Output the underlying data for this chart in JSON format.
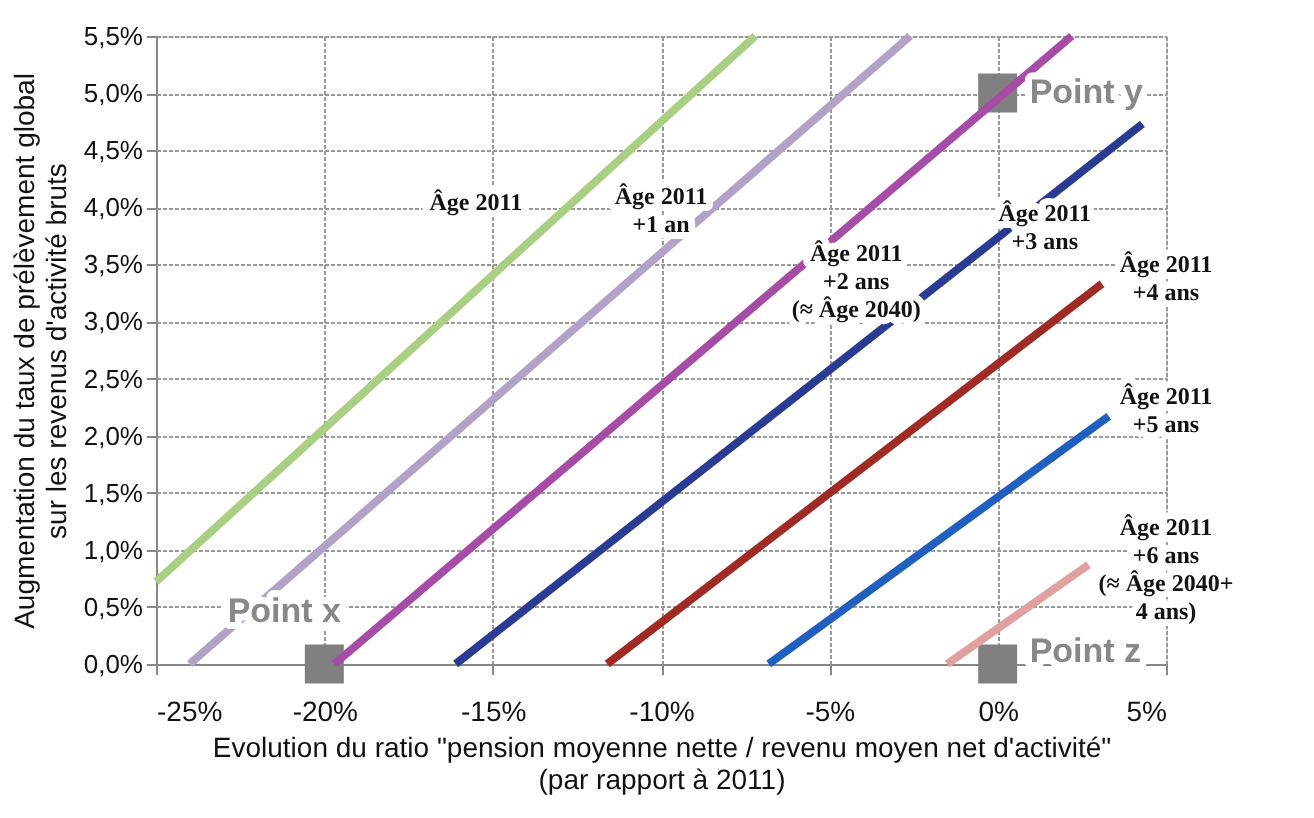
{
  "chart_data": {
    "type": "line",
    "xlabel": "Evolution du ratio \"pension moyenne nette / revenu moyen net d'activité\"\n(par rapport à 2011)",
    "ylabel": "Augmentation du taux de prélèvement global\nsur les revenus d'activité bruts",
    "xlim": [
      -25,
      5
    ],
    "ylim": [
      0,
      5.5
    ],
    "xticks": [
      {
        "value": -25,
        "label": "-25%"
      },
      {
        "value": -20,
        "label": "-20%"
      },
      {
        "value": -15,
        "label": "-15%"
      },
      {
        "value": -10,
        "label": "-10%"
      },
      {
        "value": -5,
        "label": "-5%"
      },
      {
        "value": 0,
        "label": "0%"
      },
      {
        "value": 5,
        "label": "5%"
      }
    ],
    "yticks": [
      {
        "value": 0,
        "label": "0,0%"
      },
      {
        "value": 0.5,
        "label": "0,5%"
      },
      {
        "value": 1,
        "label": "1,0%"
      },
      {
        "value": 1.5,
        "label": "1,5%"
      },
      {
        "value": 2,
        "label": "2,0%"
      },
      {
        "value": 2.5,
        "label": "2,5%"
      },
      {
        "value": 3,
        "label": "3,0%"
      },
      {
        "value": 3.5,
        "label": "3,5%"
      },
      {
        "value": 4,
        "label": "4,0%"
      },
      {
        "value": 4.5,
        "label": "4,5%"
      },
      {
        "value": 5,
        "label": "5,0%"
      },
      {
        "value": 5.5,
        "label": "5,5%"
      }
    ],
    "grid": true,
    "line_style": "solid",
    "marker": "none",
    "series": [
      {
        "name": "Âge  2011",
        "color": "#a9cf83",
        "x": [
          -25,
          -7.2
        ],
        "values": [
          0.72,
          5.5
        ]
      },
      {
        "name": "Âge  2011\n+1 an",
        "color": "#b3a2c7",
        "x": [
          -24,
          -2.6
        ],
        "values": [
          0,
          5.5
        ]
      },
      {
        "name": "Âge  2011\n+2 ans\n(≈ Âge 2040)",
        "color": "#a64ca6",
        "x": [
          -19.7,
          2.2
        ],
        "values": [
          0,
          5.5
        ]
      },
      {
        "name": "Âge 2011\n+3 ans",
        "color": "#2a3b92",
        "x": [
          -16.1,
          4.3
        ],
        "values": [
          0,
          4.73
        ]
      },
      {
        "name": "Âge 2011\n+4 ans",
        "color": "#a02b24",
        "x": [
          -11.6,
          3.1
        ],
        "values": [
          0,
          3.33
        ]
      },
      {
        "name": "Âge 2011\n+5 ans",
        "color": "#1f5fbf",
        "x": [
          -6.8,
          3.3
        ],
        "values": [
          0,
          2.17
        ]
      },
      {
        "name": "Âge 2011\n+6 ans\n(≈ Âge 2040+\n4 ans)",
        "color": "#e0a0a0",
        "x": [
          -1.5,
          2.7
        ],
        "values": [
          0,
          0.87
        ]
      },
      {
        "type": "scatter",
        "marker": "square",
        "color": "#808080",
        "x": [
          -20,
          0,
          0
        ],
        "values": [
          0,
          5,
          0
        ]
      }
    ],
    "annotations": [
      "Point x",
      "Point y",
      "Point z"
    ]
  }
}
